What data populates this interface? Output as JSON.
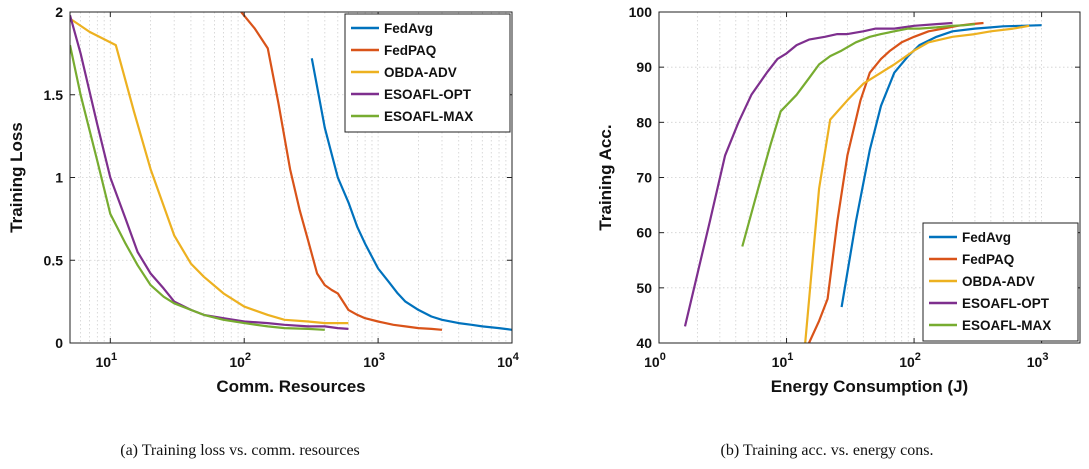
{
  "colors": {
    "FedAvg": "#0072BD",
    "FedPAQ": "#D95319",
    "OBDA-ADV": "#EDB120",
    "ESOAFL-OPT": "#7E2F8E",
    "ESOAFL-MAX": "#77AC30"
  },
  "chart_data": [
    {
      "type": "line",
      "caption": "(a) Training loss vs. comm. resources",
      "xlabel": "Comm. Resources",
      "ylabel": "Training Loss",
      "xscale": "log",
      "xlim": [
        5,
        10000
      ],
      "ylim": [
        0,
        2
      ],
      "xticks": [
        10,
        100,
        1000,
        10000
      ],
      "xtick_labels": [
        {
          "base": "10",
          "exp": "1"
        },
        {
          "base": "10",
          "exp": "2"
        },
        {
          "base": "10",
          "exp": "3"
        },
        {
          "base": "10",
          "exp": "4"
        }
      ],
      "yticks": [
        0,
        0.5,
        1,
        1.5,
        2
      ],
      "ytick_labels": [
        "0",
        "0.5",
        "1",
        "1.5",
        "2"
      ],
      "grid": true,
      "legend": "top-right",
      "series": [
        {
          "name": "FedAvg",
          "x": [
            320,
            400,
            500,
            600,
            700,
            800,
            900,
            1000,
            1200,
            1400,
            1600,
            2000,
            2500,
            3000,
            4000,
            5000,
            6000,
            8000,
            10000
          ],
          "y": [
            1.72,
            1.3,
            1.0,
            0.85,
            0.7,
            0.6,
            0.52,
            0.45,
            0.37,
            0.3,
            0.25,
            0.2,
            0.16,
            0.14,
            0.12,
            0.11,
            0.1,
            0.09,
            0.08
          ]
        },
        {
          "name": "FedPAQ",
          "x": [
            95,
            120,
            150,
            180,
            220,
            260,
            300,
            350,
            400,
            450,
            500,
            600,
            700,
            800,
            1000,
            1300,
            1600,
            2000,
            2500,
            3000
          ],
          "y": [
            2.0,
            1.9,
            1.78,
            1.45,
            1.05,
            0.8,
            0.62,
            0.42,
            0.35,
            0.32,
            0.3,
            0.2,
            0.17,
            0.15,
            0.13,
            0.11,
            0.1,
            0.09,
            0.085,
            0.08
          ]
        },
        {
          "name": "OBDA-ADV",
          "x": [
            5,
            7,
            11,
            15,
            20,
            30,
            40,
            50,
            70,
            100,
            150,
            200,
            300,
            400,
            600
          ],
          "y": [
            1.96,
            1.88,
            1.8,
            1.4,
            1.05,
            0.65,
            0.48,
            0.4,
            0.3,
            0.22,
            0.17,
            0.14,
            0.13,
            0.12,
            0.12
          ]
        },
        {
          "name": "ESOAFL-OPT",
          "x": [
            5,
            6,
            8,
            10,
            13,
            16,
            20,
            25,
            30,
            40,
            50,
            70,
            100,
            150,
            200,
            300,
            400,
            500,
            600
          ],
          "y": [
            1.98,
            1.75,
            1.32,
            1.0,
            0.75,
            0.55,
            0.42,
            0.33,
            0.25,
            0.2,
            0.17,
            0.15,
            0.13,
            0.12,
            0.11,
            0.1,
            0.1,
            0.09,
            0.085
          ]
        },
        {
          "name": "ESOAFL-MAX",
          "x": [
            5,
            6,
            8,
            10,
            13,
            16,
            20,
            25,
            30,
            40,
            50,
            70,
            100,
            150,
            200,
            300,
            400
          ],
          "y": [
            1.8,
            1.5,
            1.1,
            0.78,
            0.6,
            0.47,
            0.35,
            0.28,
            0.24,
            0.2,
            0.17,
            0.14,
            0.12,
            0.1,
            0.09,
            0.085,
            0.08
          ]
        }
      ]
    },
    {
      "type": "line",
      "caption": "(b) Training acc. vs. energy cons.",
      "xlabel": "Energy Consumption (J)",
      "ylabel": "Training Acc.",
      "xscale": "log",
      "xlim": [
        1,
        2000
      ],
      "ylim": [
        40,
        100
      ],
      "xticks": [
        1,
        10,
        100,
        1000
      ],
      "xtick_labels": [
        {
          "base": "10",
          "exp": "0"
        },
        {
          "base": "10",
          "exp": "1"
        },
        {
          "base": "10",
          "exp": "2"
        },
        {
          "base": "10",
          "exp": "3"
        }
      ],
      "yticks": [
        40,
        50,
        60,
        70,
        80,
        90,
        100
      ],
      "ytick_labels": [
        "40",
        "50",
        "60",
        "70",
        "80",
        "90",
        "100"
      ],
      "grid": true,
      "legend": "bottom-right",
      "series": [
        {
          "name": "FedAvg",
          "x": [
            27,
            35,
            45,
            55,
            70,
            90,
            110,
            150,
            200,
            300,
            400,
            500,
            700,
            1000
          ],
          "y": [
            46.5,
            62,
            75,
            83,
            89,
            92,
            94,
            95.5,
            96.5,
            97,
            97.2,
            97.4,
            97.5,
            97.6
          ]
        },
        {
          "name": "FedPAQ",
          "x": [
            15,
            18,
            21,
            25,
            30,
            38,
            45,
            55,
            65,
            80,
            100,
            130,
            170,
            220,
            280,
            350
          ],
          "y": [
            40,
            44,
            48,
            62,
            74,
            84,
            89,
            91.5,
            93,
            94.5,
            95.5,
            96.5,
            97,
            97.5,
            97.8,
            98
          ]
        },
        {
          "name": "OBDA-ADV",
          "x": [
            14,
            16,
            18,
            22,
            30,
            40,
            55,
            70,
            100,
            130,
            200,
            300,
            400,
            600,
            800
          ],
          "y": [
            40,
            55,
            68,
            80.5,
            84,
            87,
            89,
            90.5,
            93,
            94.5,
            95.5,
            96,
            96.5,
            97,
            97.5
          ]
        },
        {
          "name": "ESOAFL-OPT",
          "x": [
            1.6,
            2.5,
            3.3,
            4.2,
            5.3,
            7,
            8.5,
            10,
            12,
            15,
            20,
            25,
            30,
            40,
            50,
            70,
            100,
            150,
            200
          ],
          "y": [
            43,
            62,
            74,
            80,
            85,
            89,
            91.5,
            92.5,
            94,
            95,
            95.5,
            96,
            96,
            96.5,
            97,
            97,
            97.5,
            97.8,
            98
          ]
        },
        {
          "name": "ESOAFL-MAX",
          "x": [
            4.5,
            6,
            7.5,
            9,
            12,
            15,
            18,
            22,
            27,
            35,
            45,
            55,
            70,
            90,
            110,
            150,
            200,
            250,
            300
          ],
          "y": [
            57.5,
            68,
            76,
            82,
            85,
            88,
            90.5,
            92,
            93,
            94.5,
            95.5,
            96,
            96.5,
            97,
            97,
            97.2,
            97.5,
            97.6,
            97.8
          ]
        }
      ]
    }
  ]
}
